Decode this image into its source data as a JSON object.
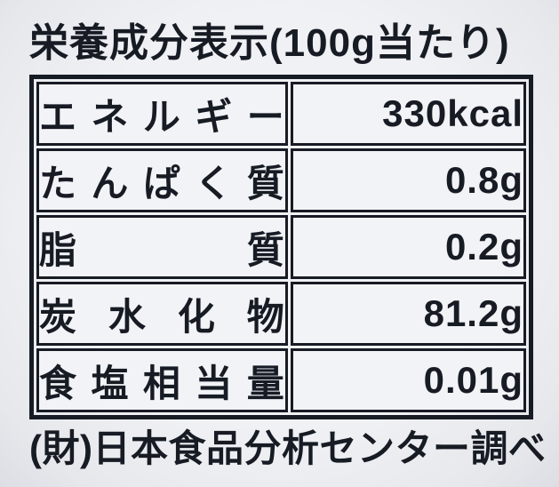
{
  "label": {
    "title": "栄養成分表示(100g当たり)",
    "serving_basis": "100g当たり",
    "footer": "(財)日本食品分析センター調べ",
    "colors": {
      "ink": "#171b24",
      "background": "#eceef2",
      "cell_background": "#f2f3f6"
    },
    "table": {
      "rows": [
        {
          "name": "エネルギー",
          "value": "330kcal"
        },
        {
          "name": "たんぱく質",
          "value": "0.8g"
        },
        {
          "name": "脂質",
          "value": "0.2g"
        },
        {
          "name": "炭水化物",
          "value": "81.2g"
        },
        {
          "name": "食塩相当量",
          "value": "0.01g"
        }
      ]
    }
  }
}
